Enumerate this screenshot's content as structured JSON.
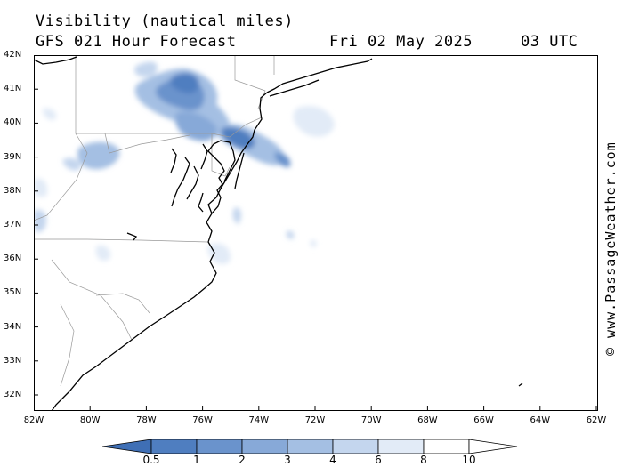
{
  "header": {
    "line1": "Visibility (nautical miles)",
    "line2": "GFS 021 Hour Forecast",
    "date": "Fri 02 May 2025",
    "time": "03 UTC"
  },
  "credit": "© www.PassageWeather.com",
  "axes": {
    "lat_labels": [
      "42N",
      "41N",
      "40N",
      "39N",
      "38N",
      "37N",
      "36N",
      "35N",
      "34N",
      "33N",
      "32N"
    ],
    "lon_labels": [
      "82W",
      "80W",
      "78W",
      "76W",
      "74W",
      "72W",
      "70W",
      "68W",
      "66W",
      "64W",
      "62W"
    ]
  },
  "legend": {
    "values": [
      "0.5",
      "1",
      "2",
      "3",
      "4",
      "6",
      "8",
      "10"
    ],
    "colors": [
      "#3f6fb5",
      "#4f7ec0",
      "#6a93cc",
      "#87a9d8",
      "#a4bfe3",
      "#c4d6ee",
      "#e2ebf7",
      "#ffffff"
    ]
  }
}
